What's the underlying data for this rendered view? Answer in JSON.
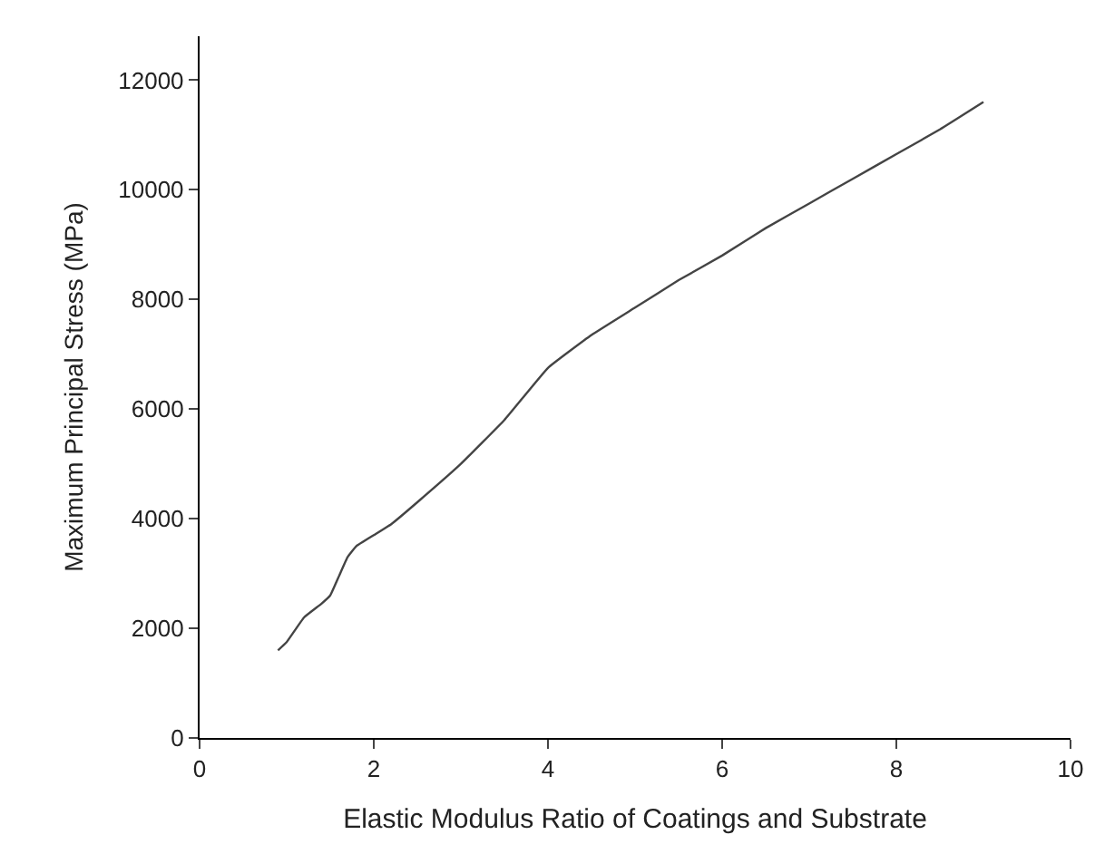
{
  "chart_data": {
    "type": "line",
    "xlabel": "Elastic Modulus Ratio of Coatings and Substrate",
    "ylabel": "Maximum Principal Stress (MPa)",
    "series": [
      {
        "color": "#444444",
        "x": [
          0.9,
          1.0,
          1.2,
          1.4,
          1.5,
          1.6,
          1.7,
          1.8,
          2.0,
          2.2,
          2.5,
          3.0,
          3.5,
          4.0,
          4.5,
          5.0,
          5.5,
          6.0,
          6.5,
          7.0,
          7.5,
          8.0,
          8.5,
          9.0
        ],
        "values": [
          1600,
          1750,
          2200,
          2450,
          2600,
          2950,
          3300,
          3500,
          3700,
          3900,
          4300,
          5000,
          5800,
          6750,
          7350,
          7850,
          8350,
          8800,
          9300,
          9750,
          10200,
          10650,
          11100,
          11600
        ]
      }
    ],
    "xlim": [
      0,
      10
    ],
    "xticks": [
      0,
      2,
      4,
      6,
      8,
      10
    ],
    "ylim": [
      0,
      12800
    ],
    "yticks": [
      0,
      2000,
      4000,
      6000,
      8000,
      10000,
      12000
    ],
    "legend": false,
    "marker": "none",
    "line_style": "solid"
  }
}
